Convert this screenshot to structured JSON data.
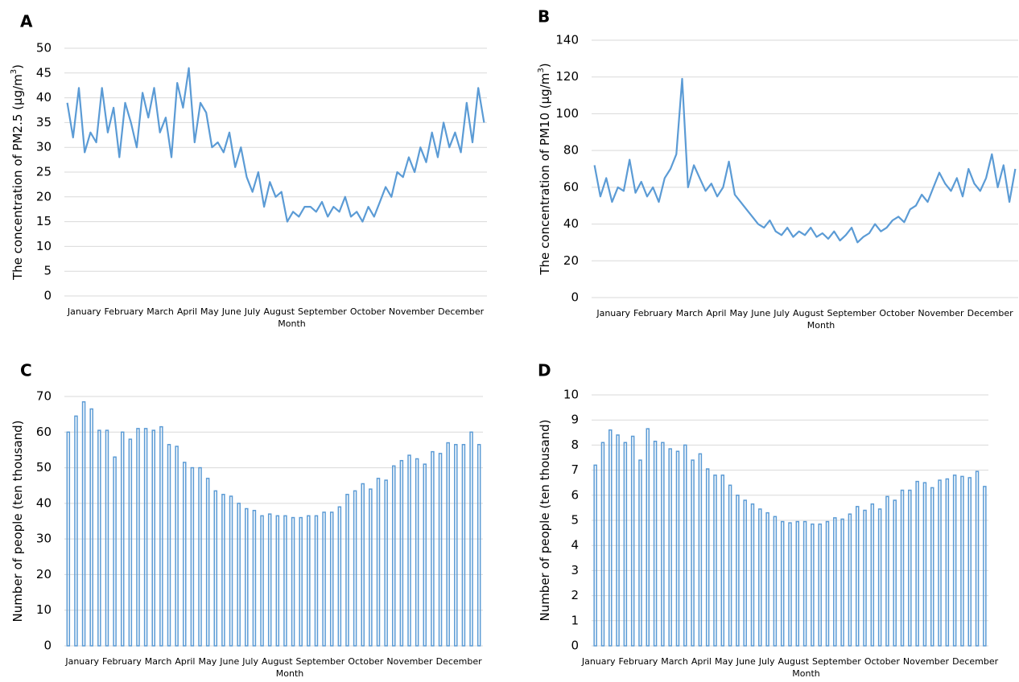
{
  "chart_data": [
    {
      "type": "line",
      "panel": "A",
      "ylabel": [
        "The concentration of PM2.5 (μg/m",
        "3",
        ")"
      ],
      "xlabel": "Month",
      "month_labels": [
        "January",
        "February",
        "March",
        "April",
        "May",
        "June",
        "July",
        "August",
        "September",
        "October",
        "November",
        "December"
      ],
      "color": "#5b9bd5",
      "grid": true,
      "ylim": [
        0,
        50
      ],
      "yticks": [
        0,
        5,
        10,
        15,
        20,
        25,
        30,
        35,
        40,
        45,
        50
      ],
      "values": [
        39,
        32,
        42,
        29,
        33,
        31,
        42,
        33,
        38,
        28,
        39,
        35,
        30,
        41,
        36,
        42,
        33,
        36,
        28,
        43,
        38,
        46,
        31,
        39,
        37,
        30,
        31,
        29,
        33,
        26,
        30,
        24,
        21,
        25,
        18,
        23,
        20,
        21,
        15,
        17,
        16,
        18,
        18,
        17,
        19,
        16,
        18,
        17,
        20,
        16,
        17,
        15,
        18,
        16,
        19,
        22,
        20,
        25,
        24,
        28,
        25,
        30,
        27,
        33,
        28,
        35,
        30,
        33,
        29,
        39,
        31,
        42,
        35
      ]
    },
    {
      "type": "line",
      "panel": "B",
      "ylabel": [
        "The concentration of PM10 (μg/m",
        "3",
        ")"
      ],
      "xlabel": "Month",
      "month_labels": [
        "January",
        "February",
        "March",
        "April",
        "May",
        "June",
        "July",
        "August",
        "September",
        "October",
        "November",
        "December"
      ],
      "color": "#5b9bd5",
      "grid": true,
      "ylim": [
        0,
        140
      ],
      "yticks": [
        0,
        20,
        40,
        60,
        80,
        100,
        120,
        140
      ],
      "values": [
        72,
        55,
        65,
        52,
        60,
        58,
        75,
        57,
        63,
        55,
        60,
        52,
        65,
        70,
        78,
        119,
        60,
        72,
        65,
        58,
        62,
        55,
        60,
        74,
        56,
        52,
        48,
        44,
        40,
        38,
        42,
        36,
        34,
        38,
        33,
        36,
        34,
        38,
        33,
        35,
        32,
        36,
        31,
        34,
        38,
        30,
        33,
        35,
        40,
        36,
        38,
        42,
        44,
        41,
        48,
        50,
        56,
        52,
        60,
        68,
        62,
        58,
        65,
        55,
        70,
        62,
        58,
        65,
        78,
        60,
        72,
        52,
        70
      ]
    },
    {
      "type": "bar",
      "panel": "C",
      "ylabel": [
        "Number of people (ten thousand)"
      ],
      "xlabel": "Month",
      "month_labels": [
        "January",
        "February",
        "March",
        "April",
        "May",
        "June",
        "July",
        "August",
        "September",
        "October",
        "November",
        "December"
      ],
      "color": "#5b9bd5",
      "grid": true,
      "ylim": [
        0,
        70
      ],
      "yticks": [
        0,
        10,
        20,
        30,
        40,
        50,
        60,
        70
      ],
      "values": [
        60,
        64.5,
        68.5,
        66.5,
        60.5,
        60.5,
        53,
        60,
        58,
        61,
        61,
        60.5,
        61.5,
        56.5,
        56,
        51.5,
        50,
        50,
        47,
        43.5,
        42.5,
        42,
        40,
        38.5,
        38,
        36.5,
        37,
        36.5,
        36.5,
        36,
        36,
        36.5,
        36.5,
        37.5,
        37.5,
        39,
        42.5,
        43.5,
        45.5,
        44,
        47,
        46.5,
        50.5,
        52,
        53.5,
        52.5,
        51,
        54.5,
        54,
        57,
        56.5,
        56.5,
        60,
        56.5
      ]
    },
    {
      "type": "bar",
      "panel": "D",
      "ylabel": [
        "Number of people (ten thousand)"
      ],
      "xlabel": "Month",
      "month_labels": [
        "January",
        "February",
        "March",
        "April",
        "May",
        "June",
        "July",
        "August",
        "September",
        "October",
        "November",
        "December"
      ],
      "color": "#5b9bd5",
      "grid": true,
      "ylim": [
        0,
        10
      ],
      "yticks": [
        0,
        1,
        2,
        3,
        4,
        5,
        6,
        7,
        8,
        9,
        10
      ],
      "values": [
        7.2,
        8.1,
        8.6,
        8.4,
        8.1,
        8.35,
        7.4,
        8.65,
        8.15,
        8.1,
        7.85,
        7.75,
        8.0,
        7.4,
        7.65,
        7.05,
        6.8,
        6.8,
        6.4,
        6.0,
        5.8,
        5.65,
        5.45,
        5.3,
        5.15,
        4.95,
        4.9,
        4.95,
        4.95,
        4.85,
        4.85,
        4.95,
        5.1,
        5.05,
        5.25,
        5.55,
        5.4,
        5.65,
        5.45,
        5.95,
        5.8,
        6.2,
        6.2,
        6.55,
        6.5,
        6.3,
        6.6,
        6.65,
        6.8,
        6.75,
        6.7,
        6.95,
        6.35
      ]
    }
  ]
}
